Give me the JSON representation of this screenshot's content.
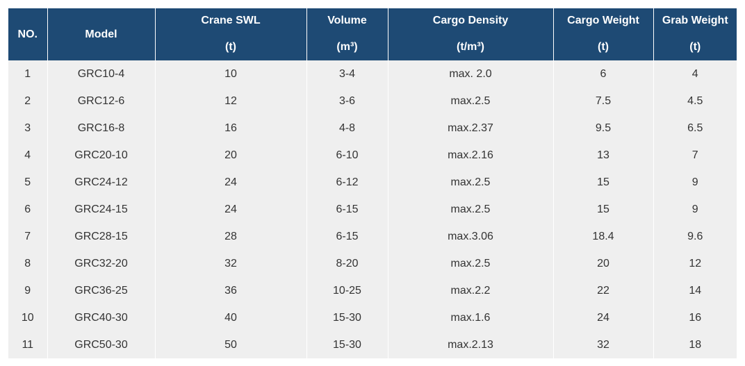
{
  "table": {
    "headers": [
      {
        "line1": "NO.",
        "line2": ""
      },
      {
        "line1": "Model",
        "line2": ""
      },
      {
        "line1": "Crane SWL",
        "line2": "(t)"
      },
      {
        "line1": "Volume",
        "line2": "(m³)"
      },
      {
        "line1": "Cargo Density",
        "line2": "(t/m³)"
      },
      {
        "line1": "Cargo Weight",
        "line2": "(t)"
      },
      {
        "line1": "Grab Weight",
        "line2": "(t)"
      }
    ],
    "rows": [
      [
        "1",
        "GRC10-4",
        "10",
        "3-4",
        "max. 2.0",
        "6",
        "4"
      ],
      [
        "2",
        "GRC12-6",
        "12",
        "3-6",
        "max.2.5",
        "7.5",
        "4.5"
      ],
      [
        "3",
        "GRC16-8",
        "16",
        "4-8",
        "max.2.37",
        "9.5",
        "6.5"
      ],
      [
        "4",
        "GRC20-10",
        "20",
        "6-10",
        "max.2.16",
        "13",
        "7"
      ],
      [
        "5",
        "GRC24-12",
        "24",
        "6-12",
        "max.2.5",
        "15",
        "9"
      ],
      [
        "6",
        "GRC24-15",
        "24",
        "6-15",
        "max.2.5",
        "15",
        "9"
      ],
      [
        "7",
        "GRC28-15",
        "28",
        "6-15",
        "max.3.06",
        "18.4",
        "9.6"
      ],
      [
        "8",
        "GRC32-20",
        "32",
        "8-20",
        "max.2.5",
        "20",
        "12"
      ],
      [
        "9",
        "GRC36-25",
        "36",
        "10-25",
        "max.2.2",
        "22",
        "14"
      ],
      [
        "10",
        "GRC40-30",
        "40",
        "15-30",
        "max.1.6",
        "24",
        "16"
      ],
      [
        "11",
        "GRC50-30",
        "50",
        "15-30",
        "max.2.13",
        "32",
        "18"
      ]
    ]
  },
  "colors": {
    "header_bg": "#1e4a74",
    "header_text": "#ffffff",
    "row_bg": "#efefef",
    "cell_text": "#333333"
  }
}
